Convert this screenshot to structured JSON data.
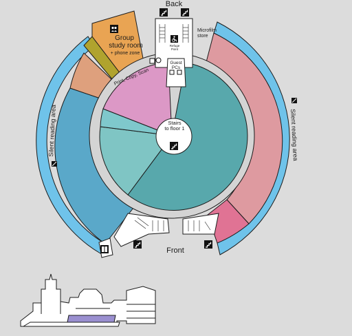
{
  "colors": {
    "background": "#dcdcdc",
    "outer_ring": "#6fc3ea",
    "group_study": "#e9a453",
    "olive_strip": "#b0a32e",
    "salmon_room": "#dea07d",
    "silent_left": "#5aa8c9",
    "silent_right": "#de9aa0",
    "front_pink": "#e07394",
    "corridor": "#d4d4d4",
    "print_zone": "#dc98c6",
    "small_teal": "#7fc8cc",
    "teal_mid": "#7fc5c4",
    "teal_main": "#58a8ac",
    "stairs_circle": "#ffffff",
    "building_purple": "#9a8fd0"
  },
  "labels": {
    "back": "Back",
    "front": "Front",
    "microfilm_store": "Microfilm store",
    "refuge_point": "Refuge Point",
    "group_study_room": "Group study room",
    "phone_zone": "+ phone zone",
    "print_copy_scan": "Print, Copy, Scan",
    "guest_pcs": "Guest PCs",
    "stairs_to_floor": "Stairs to floor 1",
    "silent_reading_left": "Silent reading area",
    "silent_reading_right": "Silent reading area"
  },
  "icons": [
    "stairs-icon",
    "wheelchair-icon",
    "silent-icon",
    "elevator-icon",
    "computer-icon",
    "printer-icon"
  ]
}
